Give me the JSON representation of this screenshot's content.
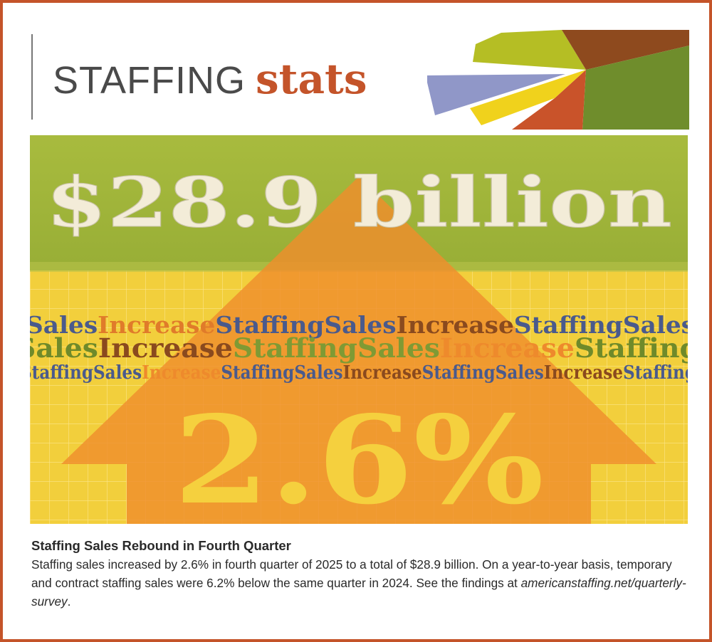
{
  "header": {
    "title_light": "STAFFING",
    "title_bold": "stats"
  },
  "hero": {
    "headline": "$28.9 billion",
    "percent": "2.6%",
    "ticker_words": [
      "Staffing",
      "Sales",
      "Increase"
    ]
  },
  "caption": {
    "heading": "Staffing Sales Rebound in Fourth Quarter",
    "body": "Staffing sales increased by 2.6% in fourth quarter of 2025 to a total of $28.9 billion. On a year-to-year basis, temporary and contract staffing sales were 6.2% below the same quarter in 2024. See the findings at ",
    "link": "americanstaffing.net/quarterly-survey",
    "body_end": "."
  },
  "colors": {
    "accent_orange": "#c4542a",
    "green_band": "#9fb73a",
    "yellow_bg": "#f2cf3c",
    "arrow_orange": "#ef8d2c",
    "ticker_blue": "#4a5a8c",
    "ticker_brown": "#8a4a1e",
    "ticker_orange": "#e07b2a",
    "ticker_green": "#6f8a2a"
  }
}
